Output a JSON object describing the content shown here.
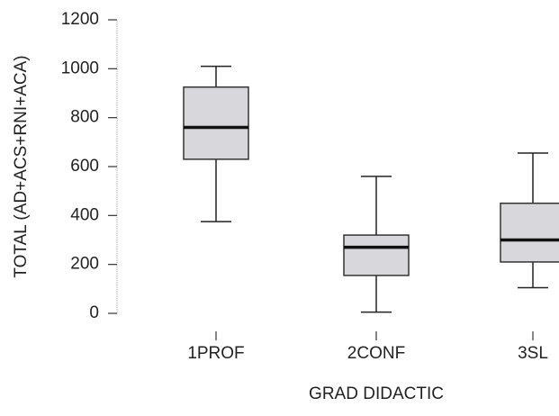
{
  "chart_data": {
    "type": "box",
    "x_label": "GRAD DIDACTIC",
    "y_label": "TOTAL (AD+ACS+RNI+ACA)",
    "categories": [
      "1PROF",
      "2CONF",
      "3SL"
    ],
    "boxes": [
      {
        "min": 375,
        "q1": 630,
        "median": 760,
        "q3": 925,
        "max": 1010
      },
      {
        "min": 5,
        "q1": 155,
        "median": 270,
        "q3": 320,
        "max": 560
      },
      {
        "min": 105,
        "q1": 210,
        "median": 300,
        "q3": 450,
        "max": 655
      }
    ],
    "color": "#d8d8dc",
    "ylim": [
      0,
      1200
    ],
    "yticks": [
      0,
      200,
      400,
      600,
      800,
      1000,
      1200
    ]
  }
}
